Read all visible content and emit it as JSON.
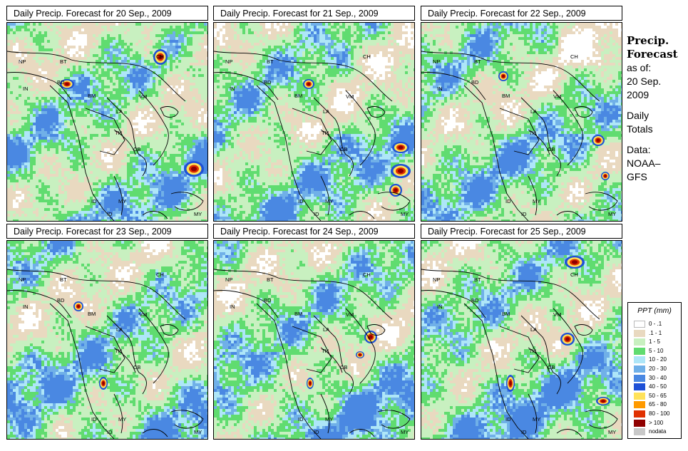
{
  "panels": [
    {
      "title": "Daily Precip. Forecast for  20 Sep., 2009",
      "date": "20 Sep."
    },
    {
      "title": "Daily Precip. Forecast for  21 Sep., 2009",
      "date": "21 Sep."
    },
    {
      "title": "Daily Precip. Forecast for  22 Sep., 2009",
      "date": "22 Sep."
    },
    {
      "title": "Daily Precip. Forecast for  23 Sep., 2009",
      "date": "23 Sep."
    },
    {
      "title": "Daily Precip. Forecast for  24 Sep., 2009",
      "date": "24 Sep."
    },
    {
      "title": "Daily Precip. Forecast for  25 Sep., 2009",
      "date": "25 Sep."
    }
  ],
  "country_labels": [
    "NP",
    "BT",
    "IN",
    "BD",
    "BM",
    "CH",
    "LA",
    "VM",
    "TH",
    "CB",
    "MY",
    "ID"
  ],
  "side": {
    "title_line1": "Precip.",
    "title_line2": "Forecast",
    "asof": "as of:",
    "date_line1": "20 Sep.",
    "date_line2": "2009",
    "daily1": "Daily",
    "daily2": "Totals",
    "data1": "Data:",
    "data2": "NOAA–",
    "data3": "GFS"
  },
  "legend": {
    "title": "PPT (mm)",
    "items": [
      {
        "label": "0 - .1",
        "color": "#ffffff"
      },
      {
        "label": ".1 - 1",
        "color": "#e9d9c0"
      },
      {
        "label": "1 - 5",
        "color": "#c8f0c0"
      },
      {
        "label": "5 - 10",
        "color": "#60dc70"
      },
      {
        "label": "10 - 20",
        "color": "#aee6f8"
      },
      {
        "label": "20 - 30",
        "color": "#70b0e8"
      },
      {
        "label": "30 - 40",
        "color": "#4a88e2"
      },
      {
        "label": "40 - 50",
        "color": "#1e50d6"
      },
      {
        "label": "50 - 65",
        "color": "#ffe25a"
      },
      {
        "label": "65 - 80",
        "color": "#ff9a00"
      },
      {
        "label": "80 - 100",
        "color": "#e03000"
      },
      {
        "label": "> 100",
        "color": "#900000"
      },
      {
        "label": "nodata",
        "color": "#c8c8c8"
      }
    ]
  }
}
